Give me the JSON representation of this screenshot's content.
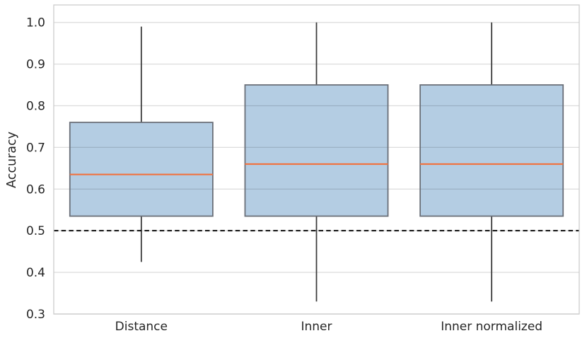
{
  "chart_data": {
    "type": "box",
    "title": "",
    "xlabel": "",
    "ylabel": "Accuracy",
    "categories": [
      "Distance",
      "Inner",
      "Inner normalized"
    ],
    "series": [
      {
        "name": "Distance",
        "whisker_low": 0.425,
        "q1": 0.535,
        "median": 0.635,
        "q3": 0.76,
        "whisker_high": 0.99
      },
      {
        "name": "Inner",
        "whisker_low": 0.33,
        "q1": 0.535,
        "median": 0.66,
        "q3": 0.85,
        "whisker_high": 1.0
      },
      {
        "name": "Inner normalized",
        "whisker_low": 0.33,
        "q1": 0.535,
        "median": 0.66,
        "q3": 0.85,
        "whisker_high": 1.0
      }
    ],
    "reference_line": {
      "value": 0.5,
      "style": "dashed"
    },
    "y_tick_labels": [
      "0.3",
      "0.4",
      "0.5",
      "0.6",
      "0.7",
      "0.8",
      "0.9",
      "1.0"
    ],
    "y_tick_values": [
      0.3,
      0.4,
      0.5,
      0.6,
      0.7,
      0.8,
      0.9,
      1.0
    ],
    "ylim": [
      0.3,
      1.042
    ],
    "grid": "horizontal",
    "legend": "none",
    "show_caps": false,
    "colors": {
      "background": "#ffffff",
      "box_fill": "#b4cde3",
      "box_edge": "#6a6f78",
      "median": "#f07341",
      "whisker": "#3d3d3d",
      "reference": "#000000",
      "grid": "#dcdcdc",
      "spine": "#cccccc",
      "tick_text": "#262626"
    }
  }
}
